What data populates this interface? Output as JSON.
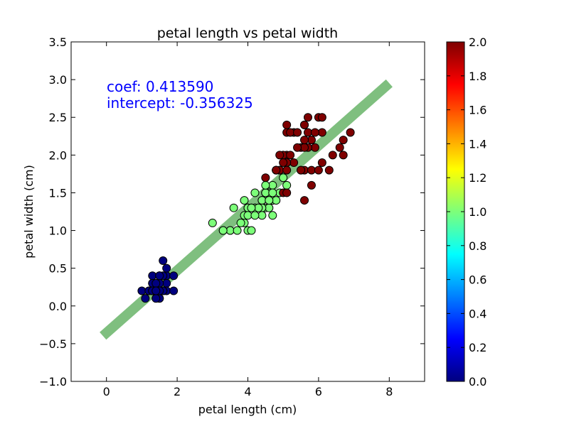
{
  "chart_data": {
    "type": "scatter",
    "title": "petal length vs petal width",
    "xlabel": "petal length (cm)",
    "ylabel": "petal width (cm)",
    "xlim": [
      -1,
      9
    ],
    "ylim": [
      -1.0,
      3.5
    ],
    "x_ticks": [
      "0",
      "2",
      "4",
      "6",
      "8"
    ],
    "y_ticks": [
      "−1.0",
      "−0.5",
      "0.0",
      "0.5",
      "1.0",
      "1.5",
      "2.0",
      "2.5",
      "3.0",
      "3.5"
    ],
    "grid": false,
    "annotations": [
      "coef: 0.413590",
      "intercept: -0.356325"
    ],
    "fit_line": {
      "x": [
        -0.1,
        8.0
      ],
      "y": [
        -0.397684,
        2.952397
      ],
      "color": "#7fbf7f"
    },
    "colorbar": {
      "range": [
        0.0,
        2.0
      ],
      "ticks": [
        "0.0",
        "0.2",
        "0.4",
        "0.6",
        "0.8",
        "1.0",
        "1.2",
        "1.4",
        "1.6",
        "1.8",
        "2.0"
      ],
      "colormap": "jet"
    },
    "series": [
      {
        "class": 0,
        "color": "#00007f",
        "points": [
          [
            1.4,
            0.2
          ],
          [
            1.4,
            0.2
          ],
          [
            1.3,
            0.2
          ],
          [
            1.5,
            0.2
          ],
          [
            1.4,
            0.2
          ],
          [
            1.7,
            0.4
          ],
          [
            1.4,
            0.3
          ],
          [
            1.5,
            0.2
          ],
          [
            1.4,
            0.2
          ],
          [
            1.5,
            0.1
          ],
          [
            1.5,
            0.2
          ],
          [
            1.6,
            0.2
          ],
          [
            1.4,
            0.1
          ],
          [
            1.1,
            0.1
          ],
          [
            1.2,
            0.2
          ],
          [
            1.5,
            0.4
          ],
          [
            1.3,
            0.4
          ],
          [
            1.4,
            0.3
          ],
          [
            1.7,
            0.3
          ],
          [
            1.5,
            0.3
          ],
          [
            1.7,
            0.2
          ],
          [
            1.5,
            0.4
          ],
          [
            1.0,
            0.2
          ],
          [
            1.7,
            0.5
          ],
          [
            1.9,
            0.2
          ],
          [
            1.6,
            0.2
          ],
          [
            1.6,
            0.4
          ],
          [
            1.5,
            0.2
          ],
          [
            1.4,
            0.2
          ],
          [
            1.6,
            0.2
          ],
          [
            1.6,
            0.2
          ],
          [
            1.5,
            0.4
          ],
          [
            1.5,
            0.1
          ],
          [
            1.4,
            0.2
          ],
          [
            1.5,
            0.2
          ],
          [
            1.2,
            0.2
          ],
          [
            1.3,
            0.2
          ],
          [
            1.4,
            0.1
          ],
          [
            1.3,
            0.2
          ],
          [
            1.5,
            0.2
          ],
          [
            1.3,
            0.3
          ],
          [
            1.3,
            0.3
          ],
          [
            1.3,
            0.2
          ],
          [
            1.6,
            0.6
          ],
          [
            1.9,
            0.4
          ],
          [
            1.4,
            0.3
          ],
          [
            1.6,
            0.2
          ],
          [
            1.4,
            0.2
          ],
          [
            1.5,
            0.2
          ],
          [
            1.4,
            0.2
          ]
        ]
      },
      {
        "class": 1,
        "color": "#7cff79",
        "points": [
          [
            4.7,
            1.4
          ],
          [
            4.5,
            1.5
          ],
          [
            4.9,
            1.5
          ],
          [
            4.0,
            1.3
          ],
          [
            4.6,
            1.5
          ],
          [
            4.5,
            1.3
          ],
          [
            4.7,
            1.6
          ],
          [
            3.3,
            1.0
          ],
          [
            4.6,
            1.3
          ],
          [
            3.9,
            1.4
          ],
          [
            3.5,
            1.0
          ],
          [
            4.2,
            1.5
          ],
          [
            4.0,
            1.0
          ],
          [
            4.7,
            1.4
          ],
          [
            3.6,
            1.3
          ],
          [
            4.4,
            1.4
          ],
          [
            4.5,
            1.5
          ],
          [
            4.1,
            1.0
          ],
          [
            4.5,
            1.5
          ],
          [
            3.9,
            1.1
          ],
          [
            4.8,
            1.8
          ],
          [
            4.0,
            1.3
          ],
          [
            4.9,
            1.5
          ],
          [
            4.7,
            1.2
          ],
          [
            4.3,
            1.3
          ],
          [
            4.4,
            1.4
          ],
          [
            4.8,
            1.4
          ],
          [
            5.0,
            1.7
          ],
          [
            4.5,
            1.5
          ],
          [
            3.5,
            1.0
          ],
          [
            3.8,
            1.1
          ],
          [
            3.7,
            1.0
          ],
          [
            3.9,
            1.2
          ],
          [
            5.1,
            1.6
          ],
          [
            4.5,
            1.5
          ],
          [
            4.5,
            1.6
          ],
          [
            4.7,
            1.5
          ],
          [
            4.4,
            1.3
          ],
          [
            4.1,
            1.3
          ],
          [
            4.0,
            1.3
          ],
          [
            4.4,
            1.2
          ],
          [
            4.6,
            1.4
          ],
          [
            4.0,
            1.2
          ],
          [
            3.3,
            1.0
          ],
          [
            4.2,
            1.3
          ],
          [
            4.2,
            1.2
          ],
          [
            4.2,
            1.3
          ],
          [
            4.3,
            1.3
          ],
          [
            3.0,
            1.1
          ],
          [
            4.1,
            1.3
          ]
        ]
      },
      {
        "class": 2,
        "color": "#7f0000",
        "points": [
          [
            6.0,
            2.5
          ],
          [
            5.1,
            1.9
          ],
          [
            5.9,
            2.1
          ],
          [
            5.6,
            1.8
          ],
          [
            5.8,
            2.2
          ],
          [
            6.6,
            2.1
          ],
          [
            4.5,
            1.7
          ],
          [
            6.3,
            1.8
          ],
          [
            5.8,
            1.8
          ],
          [
            6.1,
            2.5
          ],
          [
            5.1,
            2.0
          ],
          [
            5.3,
            1.9
          ],
          [
            5.5,
            2.1
          ],
          [
            5.0,
            2.0
          ],
          [
            5.1,
            2.4
          ],
          [
            5.3,
            2.3
          ],
          [
            5.5,
            1.8
          ],
          [
            6.7,
            2.2
          ],
          [
            6.9,
            2.3
          ],
          [
            5.0,
            1.5
          ],
          [
            5.7,
            2.3
          ],
          [
            4.9,
            2.0
          ],
          [
            6.7,
            2.0
          ],
          [
            4.9,
            1.8
          ],
          [
            5.7,
            2.1
          ],
          [
            6.0,
            1.8
          ],
          [
            4.8,
            1.8
          ],
          [
            4.9,
            1.8
          ],
          [
            5.6,
            2.1
          ],
          [
            5.8,
            1.6
          ],
          [
            6.1,
            1.9
          ],
          [
            6.4,
            2.0
          ],
          [
            5.6,
            2.2
          ],
          [
            5.1,
            1.5
          ],
          [
            5.6,
            1.4
          ],
          [
            6.1,
            2.3
          ],
          [
            5.6,
            2.4
          ],
          [
            5.5,
            1.8
          ],
          [
            4.8,
            1.8
          ],
          [
            5.4,
            2.1
          ],
          [
            5.6,
            2.4
          ],
          [
            5.1,
            2.3
          ],
          [
            5.1,
            1.9
          ],
          [
            5.9,
            2.3
          ],
          [
            5.7,
            2.5
          ],
          [
            5.2,
            2.3
          ],
          [
            5.0,
            1.9
          ],
          [
            5.2,
            2.0
          ],
          [
            5.4,
            2.3
          ],
          [
            5.1,
            1.8
          ]
        ]
      }
    ]
  }
}
